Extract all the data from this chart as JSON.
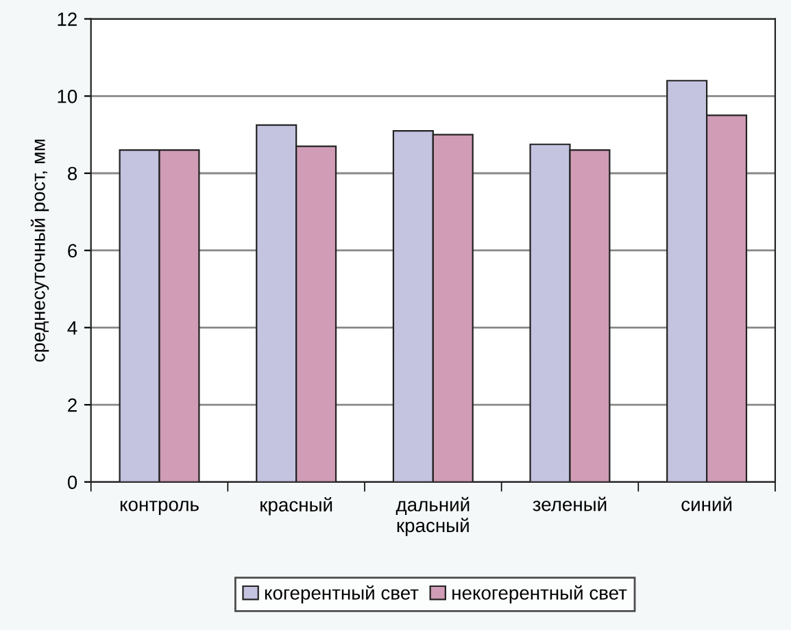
{
  "chart_data": {
    "type": "bar",
    "ylabel": "среднесуточный рост, мм",
    "categories": [
      "контроль",
      "красный",
      "дальний\nкрасный",
      "зеленый",
      "синий"
    ],
    "series": [
      {
        "name": "когерентный свет",
        "color": "#c4c3e0",
        "values": [
          8.6,
          9.25,
          9.1,
          8.75,
          10.4
        ]
      },
      {
        "name": "некогерентный свет",
        "color": "#d09cb6",
        "values": [
          8.6,
          8.7,
          9.0,
          8.6,
          9.5
        ]
      }
    ],
    "ylim": [
      0,
      12
    ],
    "yticks": [
      0,
      2,
      4,
      6,
      8,
      10,
      12
    ],
    "grid": "y",
    "legend": "bottom"
  }
}
